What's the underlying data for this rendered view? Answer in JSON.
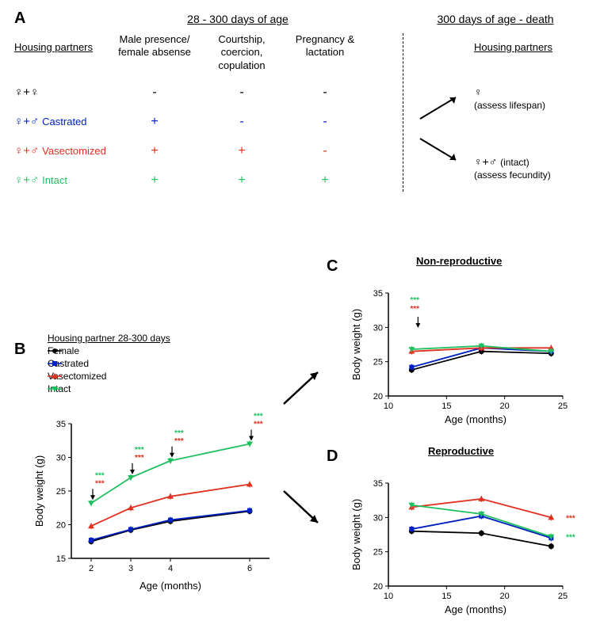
{
  "colors": {
    "black": "#000000",
    "blue": "#0020c0",
    "red": "#e03020",
    "green": "#20c060"
  },
  "panelA": {
    "label": "A",
    "header_housing": "Housing partners",
    "header_age_range": "28 - 300 days of age",
    "header_death_range": "300 days of age - death",
    "col1": "Male  presence/\nfemale absense",
    "col2": "Courtship,\ncoercion,\ncopulation",
    "col3": "Pregnancy &\nlactation",
    "right_header": "Housing partners",
    "rows": [
      {
        "symbol": "♀+♀",
        "text": "",
        "color": "#000000",
        "v1": "-",
        "v2": "-",
        "v3": "-",
        "c1": "#000000",
        "c2": "#000000",
        "c3": "#000000"
      },
      {
        "symbol": "♀+♂",
        "text": "Castrated",
        "color": "#0020c0",
        "v1": "+",
        "v2": "-",
        "v3": "-",
        "c1": "#0020c0",
        "c2": "#0020c0",
        "c3": "#0020c0"
      },
      {
        "symbol": "♀+♂",
        "text": "Vasectomized",
        "color": "#e03020",
        "v1": "+",
        "v2": "+",
        "v3": "-",
        "c1": "#e03020",
        "c2": "#e03020",
        "c3": "#e03020"
      },
      {
        "symbol": "♀+♂",
        "text": "Intact",
        "color": "#20c060",
        "v1": "+",
        "v2": "+",
        "v3": "+",
        "c1": "#20c060",
        "c2": "#20c060",
        "c3": "#20c060"
      }
    ],
    "right_option1_symbol": "♀",
    "right_option1_text": "(assess lifespan)",
    "right_option2_symbol": "♀+♂",
    "right_option2_extra": "(intact)",
    "right_option2_text": "(assess fecundity)"
  },
  "panelB": {
    "label": "B",
    "legend_title": "Housing partner 28-300 days",
    "legend": [
      {
        "label": "Female",
        "color": "#000000",
        "marker": "circle"
      },
      {
        "label": "Castrated",
        "color": "#0020c0",
        "marker": "square"
      },
      {
        "label": "Vasectomized",
        "color": "#e03020",
        "marker": "triangle"
      },
      {
        "label": "Intact",
        "color": "#20c060",
        "marker": "triangle-down"
      }
    ],
    "x_label": "Age (months)",
    "y_label": "Body weight (g)",
    "x_ticks": [
      2,
      3,
      4,
      6
    ],
    "y_ticks": [
      15,
      20,
      25,
      30,
      35
    ],
    "xlim": [
      1.5,
      6.5
    ],
    "ylim": [
      15,
      35
    ],
    "series": {
      "Female": [
        [
          2,
          17.5
        ],
        [
          3,
          19.2
        ],
        [
          4,
          20.5
        ],
        [
          6,
          22.0
        ]
      ],
      "Castrated": [
        [
          2,
          17.7
        ],
        [
          3,
          19.3
        ],
        [
          4,
          20.7
        ],
        [
          6,
          22.1
        ]
      ],
      "Vasectomized": [
        [
          2,
          19.8
        ],
        [
          3,
          22.5
        ],
        [
          4,
          24.2
        ],
        [
          6,
          26.0
        ]
      ],
      "Intact": [
        [
          2,
          23.2
        ],
        [
          3,
          27.0
        ],
        [
          4,
          29.5
        ],
        [
          6,
          32.0
        ]
      ]
    },
    "sig_markers": [
      {
        "x": 2,
        "green": "***",
        "red": "***"
      },
      {
        "x": 3,
        "green": "***",
        "red": "***"
      },
      {
        "x": 4,
        "green": "***",
        "red": "***"
      },
      {
        "x": 6,
        "green": "***",
        "red": "***"
      }
    ]
  },
  "panelC": {
    "label": "C",
    "title": "Non-reproductive",
    "x_label": "Age (months)",
    "y_label": "Body weight (g)",
    "x_ticks": [
      10,
      15,
      20,
      25
    ],
    "y_ticks": [
      20,
      25,
      30,
      35
    ],
    "xlim": [
      10,
      25
    ],
    "ylim": [
      20,
      35
    ],
    "series": {
      "Female": [
        [
          12,
          23.8
        ],
        [
          18,
          26.5
        ],
        [
          24,
          26.2
        ]
      ],
      "Castrated": [
        [
          12,
          24.2
        ],
        [
          18,
          27.0
        ],
        [
          24,
          26.5
        ]
      ],
      "Vasectomized": [
        [
          12,
          26.5
        ],
        [
          18,
          27.0
        ],
        [
          24,
          27.0
        ]
      ],
      "Intact": [
        [
          12,
          26.8
        ],
        [
          18,
          27.3
        ],
        [
          24,
          26.5
        ]
      ]
    },
    "left_stars": [
      {
        "color": "#20c060",
        "text": "***"
      },
      {
        "color": "#e03020",
        "text": "***"
      }
    ]
  },
  "panelD": {
    "label": "D",
    "title": "Reproductive",
    "x_label": "Age (months)",
    "y_label": "Body weight (g)",
    "x_ticks": [
      10,
      15,
      20,
      25
    ],
    "y_ticks": [
      20,
      25,
      30,
      35
    ],
    "xlim": [
      10,
      25
    ],
    "ylim": [
      20,
      35
    ],
    "series": {
      "Female": [
        [
          12,
          28.0
        ],
        [
          18,
          27.7
        ],
        [
          24,
          25.8
        ]
      ],
      "Castrated": [
        [
          12,
          28.3
        ],
        [
          18,
          30.2
        ],
        [
          24,
          27.0
        ]
      ],
      "Vasectomized": [
        [
          12,
          31.5
        ],
        [
          18,
          32.7
        ],
        [
          24,
          30.0
        ]
      ],
      "Intact": [
        [
          12,
          31.8
        ],
        [
          18,
          30.5
        ],
        [
          24,
          27.2
        ]
      ]
    },
    "right_stars": [
      {
        "color": "#e03020",
        "text": "***"
      },
      {
        "color": "#20c060",
        "text": "***"
      }
    ]
  }
}
